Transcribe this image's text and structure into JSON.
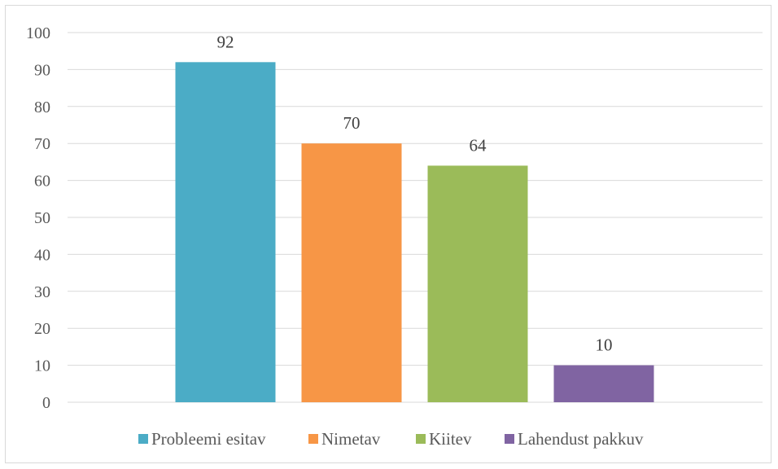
{
  "chart_data": {
    "type": "bar",
    "categories": [
      "Probleemi esitav",
      "Nimetav",
      "Kiitev",
      "Lahendust pakkuv"
    ],
    "values": [
      92,
      70,
      64,
      10
    ],
    "colors": [
      "#4BACC6",
      "#F79646",
      "#9BBB59",
      "#8064A2"
    ],
    "ylim": [
      0,
      100
    ],
    "yticks": [
      "0",
      "10",
      "20",
      "30",
      "40",
      "50",
      "60",
      "70",
      "80",
      "90",
      "100"
    ],
    "grid": true,
    "data_labels": true,
    "legend": {
      "position": "bottom",
      "entries": [
        "Probleemi esitav",
        "Nimetav",
        "Kiitev",
        "Lahendust pakkuv"
      ]
    }
  }
}
